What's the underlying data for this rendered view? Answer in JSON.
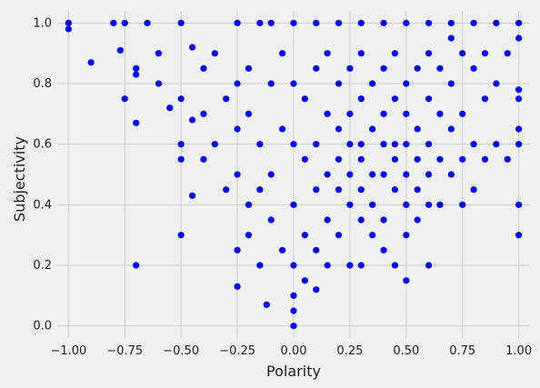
{
  "chart_data": {
    "type": "scatter",
    "title": "",
    "xlabel": "Polarity",
    "ylabel": "Subjectivity",
    "xlim": [
      -1.05,
      1.05
    ],
    "ylim": [
      -0.04,
      1.04
    ],
    "grid": true,
    "x_ticks": [
      -1.0,
      -0.75,
      -0.5,
      -0.25,
      0.0,
      0.25,
      0.5,
      0.75,
      1.0
    ],
    "x_tick_labels": [
      "−1.00",
      "−0.75",
      "−0.50",
      "−0.25",
      "0.00",
      "0.25",
      "0.50",
      "0.75",
      "1.00"
    ],
    "y_ticks": [
      0.0,
      0.2,
      0.4,
      0.6,
      0.8,
      1.0
    ],
    "y_tick_labels": [
      "0.0",
      "0.2",
      "0.4",
      "0.6",
      "0.8",
      "1.0"
    ],
    "marker_color": "#0000ff",
    "background_color": "#f0f0f0",
    "points": [
      [
        -1.0,
        1.0
      ],
      [
        -1.0,
        0.98
      ],
      [
        -0.9,
        0.87
      ],
      [
        -0.8,
        1.0
      ],
      [
        -0.75,
        1.0
      ],
      [
        -0.77,
        0.91
      ],
      [
        -0.75,
        0.75
      ],
      [
        -0.7,
        0.85
      ],
      [
        -0.7,
        0.83
      ],
      [
        -0.7,
        0.67
      ],
      [
        -0.7,
        0.2
      ],
      [
        -0.65,
        1.0
      ],
      [
        -0.6,
        0.9
      ],
      [
        -0.6,
        0.8
      ],
      [
        -0.55,
        0.72
      ],
      [
        -0.5,
        1.0
      ],
      [
        -0.5,
        0.75
      ],
      [
        -0.5,
        0.6
      ],
      [
        -0.5,
        0.55
      ],
      [
        -0.5,
        0.3
      ],
      [
        -0.45,
        0.92
      ],
      [
        -0.45,
        0.68
      ],
      [
        -0.45,
        0.43
      ],
      [
        -0.4,
        0.85
      ],
      [
        -0.4,
        0.7
      ],
      [
        -0.4,
        0.55
      ],
      [
        -0.35,
        0.9
      ],
      [
        -0.35,
        0.6
      ],
      [
        -0.3,
        0.75
      ],
      [
        -0.3,
        0.45
      ],
      [
        -0.25,
        1.0
      ],
      [
        -0.25,
        0.8
      ],
      [
        -0.25,
        0.65
      ],
      [
        -0.25,
        0.5
      ],
      [
        -0.25,
        0.25
      ],
      [
        -0.25,
        0.13
      ],
      [
        -0.2,
        0.85
      ],
      [
        -0.2,
        0.7
      ],
      [
        -0.2,
        0.4
      ],
      [
        -0.2,
        0.3
      ],
      [
        -0.15,
        1.0
      ],
      [
        -0.15,
        0.6
      ],
      [
        -0.15,
        0.45
      ],
      [
        -0.15,
        0.2
      ],
      [
        -0.12,
        0.07
      ],
      [
        -0.1,
        1.0
      ],
      [
        -0.1,
        0.8
      ],
      [
        -0.1,
        0.5
      ],
      [
        -0.1,
        0.35
      ],
      [
        -0.05,
        0.9
      ],
      [
        -0.05,
        0.65
      ],
      [
        -0.05,
        0.25
      ],
      [
        0.0,
        1.0
      ],
      [
        0.0,
        0.8
      ],
      [
        0.0,
        0.6
      ],
      [
        0.0,
        0.4
      ],
      [
        0.0,
        0.2
      ],
      [
        0.0,
        0.1
      ],
      [
        0.0,
        0.0
      ],
      [
        0.0,
        0.05
      ],
      [
        0.05,
        0.75
      ],
      [
        0.05,
        0.55
      ],
      [
        0.05,
        0.3
      ],
      [
        0.05,
        0.15
      ],
      [
        0.1,
        1.0
      ],
      [
        0.1,
        0.85
      ],
      [
        0.1,
        0.6
      ],
      [
        0.1,
        0.45
      ],
      [
        0.1,
        0.25
      ],
      [
        0.1,
        0.12
      ],
      [
        0.15,
        0.9
      ],
      [
        0.15,
        0.7
      ],
      [
        0.15,
        0.5
      ],
      [
        0.15,
        0.35
      ],
      [
        0.15,
        0.2
      ],
      [
        0.2,
        1.0
      ],
      [
        0.2,
        0.8
      ],
      [
        0.2,
        0.65
      ],
      [
        0.2,
        0.55
      ],
      [
        0.2,
        0.45
      ],
      [
        0.2,
        0.3
      ],
      [
        0.25,
        0.85
      ],
      [
        0.25,
        0.7
      ],
      [
        0.25,
        0.6
      ],
      [
        0.25,
        0.5
      ],
      [
        0.25,
        0.4
      ],
      [
        0.25,
        0.2
      ],
      [
        0.3,
        1.0
      ],
      [
        0.3,
        0.9
      ],
      [
        0.3,
        0.75
      ],
      [
        0.3,
        0.6
      ],
      [
        0.3,
        0.55
      ],
      [
        0.3,
        0.45
      ],
      [
        0.3,
        0.35
      ],
      [
        0.3,
        0.2
      ],
      [
        0.35,
        0.8
      ],
      [
        0.35,
        0.65
      ],
      [
        0.35,
        0.5
      ],
      [
        0.35,
        0.4
      ],
      [
        0.35,
        0.3
      ],
      [
        0.4,
        1.0
      ],
      [
        0.4,
        0.85
      ],
      [
        0.4,
        0.7
      ],
      [
        0.4,
        0.6
      ],
      [
        0.4,
        0.5
      ],
      [
        0.4,
        0.35
      ],
      [
        0.4,
        0.25
      ],
      [
        0.45,
        0.9
      ],
      [
        0.45,
        0.75
      ],
      [
        0.45,
        0.6
      ],
      [
        0.45,
        0.55
      ],
      [
        0.45,
        0.45
      ],
      [
        0.45,
        0.2
      ],
      [
        0.5,
        1.0
      ],
      [
        0.5,
        0.8
      ],
      [
        0.5,
        0.7
      ],
      [
        0.5,
        0.6
      ],
      [
        0.5,
        0.5
      ],
      [
        0.5,
        0.4
      ],
      [
        0.5,
        0.3
      ],
      [
        0.5,
        0.15
      ],
      [
        0.55,
        0.85
      ],
      [
        0.55,
        0.65
      ],
      [
        0.55,
        0.55
      ],
      [
        0.55,
        0.45
      ],
      [
        0.55,
        0.35
      ],
      [
        0.6,
        1.0
      ],
      [
        0.6,
        0.9
      ],
      [
        0.6,
        0.75
      ],
      [
        0.6,
        0.6
      ],
      [
        0.6,
        0.5
      ],
      [
        0.6,
        0.4
      ],
      [
        0.6,
        0.2
      ],
      [
        0.65,
        0.85
      ],
      [
        0.65,
        0.7
      ],
      [
        0.65,
        0.55
      ],
      [
        0.65,
        0.4
      ],
      [
        0.7,
        1.0
      ],
      [
        0.7,
        0.95
      ],
      [
        0.7,
        0.8
      ],
      [
        0.7,
        0.65
      ],
      [
        0.7,
        0.5
      ],
      [
        0.75,
        0.9
      ],
      [
        0.75,
        0.7
      ],
      [
        0.75,
        0.55
      ],
      [
        0.75,
        0.4
      ],
      [
        0.8,
        1.0
      ],
      [
        0.8,
        0.85
      ],
      [
        0.8,
        0.6
      ],
      [
        0.8,
        0.45
      ],
      [
        0.85,
        0.9
      ],
      [
        0.85,
        0.75
      ],
      [
        0.85,
        0.55
      ],
      [
        0.9,
        1.0
      ],
      [
        0.9,
        0.8
      ],
      [
        0.9,
        0.6
      ],
      [
        0.95,
        0.9
      ],
      [
        0.95,
        0.55
      ],
      [
        1.0,
        1.0
      ],
      [
        1.0,
        0.95
      ],
      [
        1.0,
        0.78
      ],
      [
        1.0,
        0.75
      ],
      [
        1.0,
        0.65
      ],
      [
        1.0,
        0.6
      ],
      [
        1.0,
        0.4
      ],
      [
        1.0,
        0.3
      ]
    ]
  }
}
